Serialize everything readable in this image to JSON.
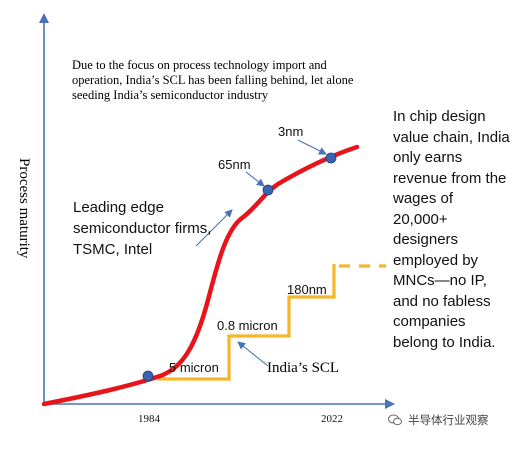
{
  "texts": {
    "top_note": "Due to the focus on process technology import and operation, India’s SCL has been falling behind, let alone seeding India’s semiconductor industry",
    "right_text": "In chip design value chain, India only earns revenue from the wages of 20,000+ designers employed by MNCs—no IP, and no fabless companies belong to India.",
    "leading_label": "Leading edge semiconductor firms, TSMC, Intel",
    "scl_label": "India’s SCL",
    "y_axis_label": "Process maturity",
    "x_tick_1984": "1984",
    "x_tick_2022": "2022",
    "node_3nm": "3nm",
    "node_65nm": "65nm",
    "node_180nm": "180nm",
    "node_08micron": "0.8 micron",
    "node_5micron": "5 micron",
    "watermark": "半导体行业观察"
  },
  "colors": {
    "red_curve": "#e8141b",
    "scl_step": "#f4b62a",
    "axis_blue": "#4a72b8",
    "marker_blue": "#3b64b0"
  },
  "icons": {
    "watermark": "wechat-icon"
  }
}
